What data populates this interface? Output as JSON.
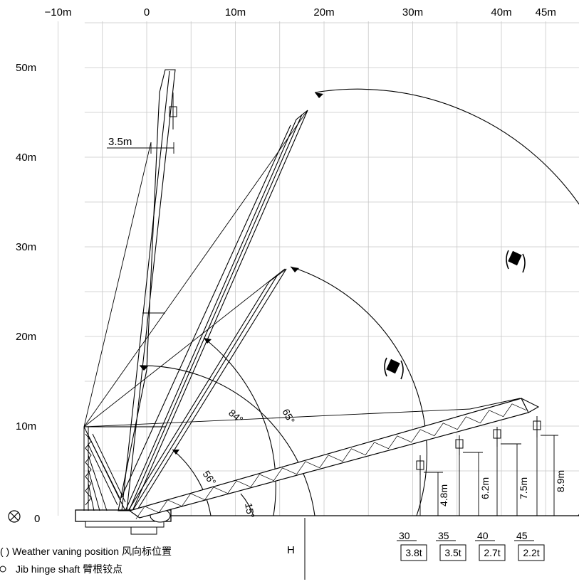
{
  "x_axis": {
    "ticks": [
      {
        "label": "−10m",
        "v": -10
      },
      {
        "label": "0",
        "v": 0
      },
      {
        "label": "10m",
        "v": 10
      },
      {
        "label": "20m",
        "v": 20
      },
      {
        "label": "30m",
        "v": 30
      },
      {
        "label": "40m",
        "v": 40
      },
      {
        "label": "45m",
        "v": 45
      }
    ]
  },
  "y_axis": {
    "ticks": [
      {
        "label": "50m",
        "v": 50
      },
      {
        "label": "40m",
        "v": 40
      },
      {
        "label": "30m",
        "v": 30
      },
      {
        "label": "20m",
        "v": 20
      },
      {
        "label": "10m",
        "v": 10
      }
    ]
  },
  "origin_label": "0",
  "dimensions": {
    "offset": "3.5m",
    "hook_heights": [
      "4.8m",
      "6.2m",
      "7.5m",
      "8.9m"
    ]
  },
  "angles": [
    "84°",
    "65°",
    "56°",
    "15°"
  ],
  "load_table": {
    "radius": [
      "30",
      "35",
      "40",
      "45"
    ],
    "load": [
      "3.8t",
      "3.5t",
      "2.7t",
      "2.2t"
    ]
  },
  "h_label": "H",
  "legend": [
    {
      "icon": "weather-vane-symbol",
      "text": "( ) Weather vaning position  风向标位置"
    },
    {
      "icon": "jib-hinge-symbol",
      "text": "Jib hinge shaft  臂根铰点"
    }
  ]
}
